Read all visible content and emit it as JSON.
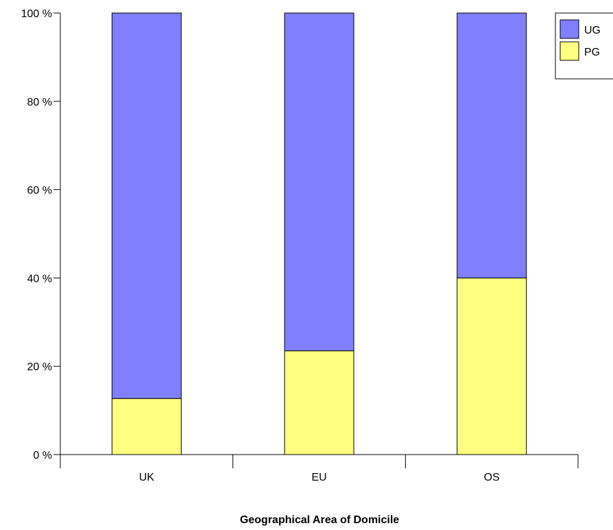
{
  "chart_data": {
    "type": "bar",
    "stacked": true,
    "percent": true,
    "title": "",
    "xlabel": "Geographical Area of Domicile",
    "ylabel": "",
    "categories": [
      "UK",
      "EU",
      "OS"
    ],
    "series": [
      {
        "name": "PG",
        "values": [
          12.7,
          23.5,
          40.0
        ],
        "color": "#ffff80"
      },
      {
        "name": "UG",
        "values": [
          87.3,
          76.5,
          60.0
        ],
        "color": "#8080ff"
      }
    ],
    "ylim": [
      0,
      100
    ],
    "yticks": [
      0,
      20,
      40,
      60,
      80,
      100
    ],
    "ytick_labels": [
      "0 %",
      "20 %",
      "40 %",
      "60 %",
      "80 %",
      "100 %"
    ],
    "legend": {
      "placement": "top-right",
      "entries": [
        {
          "label": "UG",
          "color": "#8080ff"
        },
        {
          "label": "PG",
          "color": "#ffff80"
        }
      ]
    },
    "grid": false
  }
}
